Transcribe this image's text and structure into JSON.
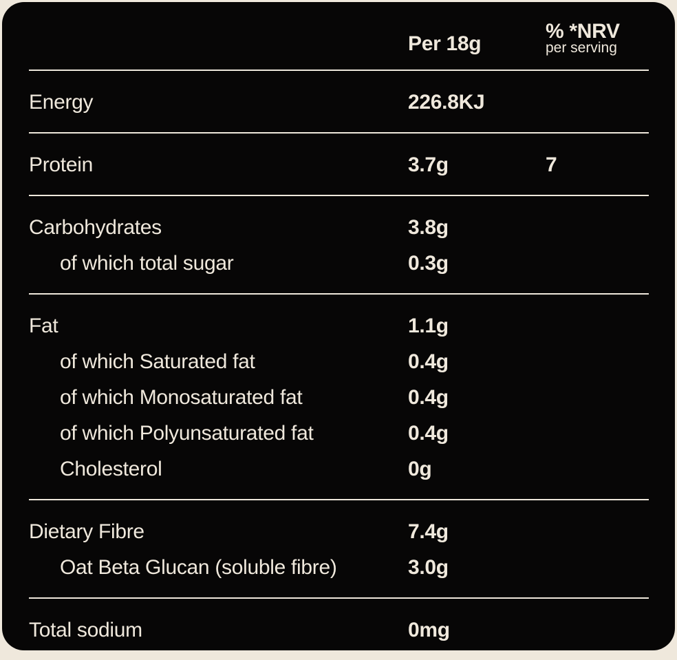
{
  "page": {
    "background_color": "#EFE8DC",
    "card_color": "#070606",
    "text_color": "#EFE8DC"
  },
  "table": {
    "header": {
      "amount_label": "Per 18g",
      "nrv_label": "% *NRV",
      "nrv_sublabel": "per serving"
    },
    "sections": [
      {
        "rows": [
          {
            "label": "Energy",
            "value": "226.8KJ",
            "nrv": "",
            "indent": false
          }
        ]
      },
      {
        "rows": [
          {
            "label": "Protein",
            "value": "3.7g",
            "nrv": "7",
            "indent": false
          }
        ]
      },
      {
        "rows": [
          {
            "label": "Carbohydrates",
            "value": "3.8g",
            "nrv": "",
            "indent": false
          },
          {
            "label": "of which total sugar",
            "value": "0.3g",
            "nrv": "",
            "indent": true
          }
        ]
      },
      {
        "rows": [
          {
            "label": "Fat",
            "value": "1.1g",
            "nrv": "",
            "indent": false
          },
          {
            "label": "of which Saturated fat",
            "value": "0.4g",
            "nrv": "",
            "indent": true
          },
          {
            "label": "of which Monosaturated fat",
            "value": "0.4g",
            "nrv": "",
            "indent": true
          },
          {
            "label": "of which Polyunsaturated fat",
            "value": "0.4g",
            "nrv": "",
            "indent": true
          },
          {
            "label": "Cholesterol",
            "value": "0g",
            "nrv": "",
            "indent": true
          }
        ]
      },
      {
        "rows": [
          {
            "label": "Dietary Fibre",
            "value": "7.4g",
            "nrv": "",
            "indent": false
          },
          {
            "label": "Oat Beta Glucan (soluble fibre)",
            "value": "3.0g",
            "nrv": "",
            "indent": true
          }
        ]
      },
      {
        "rows": [
          {
            "label": "Total sodium",
            "value": "0mg",
            "nrv": "",
            "indent": false
          }
        ]
      }
    ]
  }
}
